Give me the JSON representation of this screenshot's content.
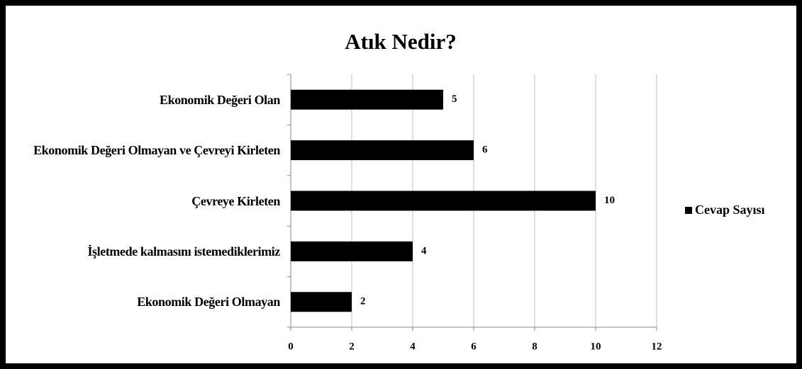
{
  "chart_data": {
    "type": "bar",
    "orientation": "horizontal",
    "title": "Atık Nedir?",
    "categories": [
      "Ekonomik Değeri Olan",
      "Ekonomik Değeri Olmayan ve Çevreyi Kirleten",
      "Çevreye Kirleten",
      "İşletmede kalmasını istemediklerimiz",
      "Ekonomik Değeri Olmayan"
    ],
    "series": [
      {
        "name": "Cevap Sayısı",
        "color": "#000000",
        "values": [
          5,
          6,
          10,
          4,
          2
        ]
      }
    ],
    "xlim": [
      0,
      12
    ],
    "xticks": [
      0,
      2,
      4,
      6,
      8,
      10,
      12
    ],
    "grid": true,
    "legend": "right"
  }
}
